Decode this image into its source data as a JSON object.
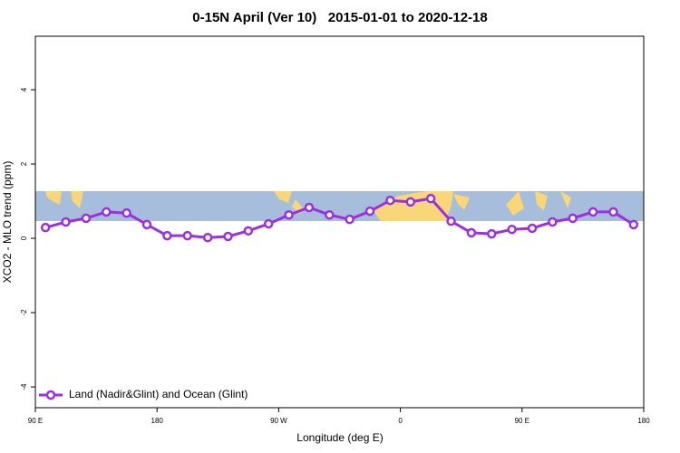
{
  "chart_data": {
    "type": "line",
    "title": "0-15N April (Ver 10)   2015-01-01 to 2020-12-18",
    "xlabel": "Longitude (deg E)",
    "ylabel": "XCO2 - MLO trend (ppm)",
    "xlim": [
      90,
      540
    ],
    "xticks": [
      {
        "value": 90,
        "label": "90 E"
      },
      {
        "value": 180,
        "label": "180"
      },
      {
        "value": 270,
        "label": "90 W"
      },
      {
        "value": 360,
        "label": "0"
      },
      {
        "value": 450,
        "label": "90 E"
      },
      {
        "value": 540,
        "label": "180"
      }
    ],
    "ylim": [
      -4.56,
      5.44
    ],
    "yticks": [
      -4,
      -2,
      0,
      2,
      4
    ],
    "grid": false,
    "legend": "bottom-left",
    "x": [
      97.5,
      112.5,
      127.5,
      142.5,
      157.5,
      172.5,
      187.5,
      202.5,
      217.5,
      232.5,
      247.5,
      262.5,
      277.5,
      292.5,
      307.5,
      322.5,
      337.5,
      352.5,
      367.5,
      382.5,
      397.5,
      412.5,
      427.5,
      442.5,
      457.5,
      472.5,
      487.5,
      502.5,
      517.5,
      532.5
    ],
    "series": [
      {
        "name": "Land (Nadir&Glint) and Ocean (Glint)",
        "color": "#9b30e0",
        "values": [
          0.29,
          0.44,
          0.54,
          0.71,
          0.68,
          0.37,
          0.07,
          0.07,
          0.02,
          0.05,
          0.2,
          0.39,
          0.63,
          0.83,
          0.63,
          0.51,
          0.73,
          1.02,
          0.98,
          1.07,
          0.46,
          0.15,
          0.12,
          0.24,
          0.27,
          0.44,
          0.54,
          0.71,
          0.71,
          0.37
        ]
      }
    ]
  }
}
